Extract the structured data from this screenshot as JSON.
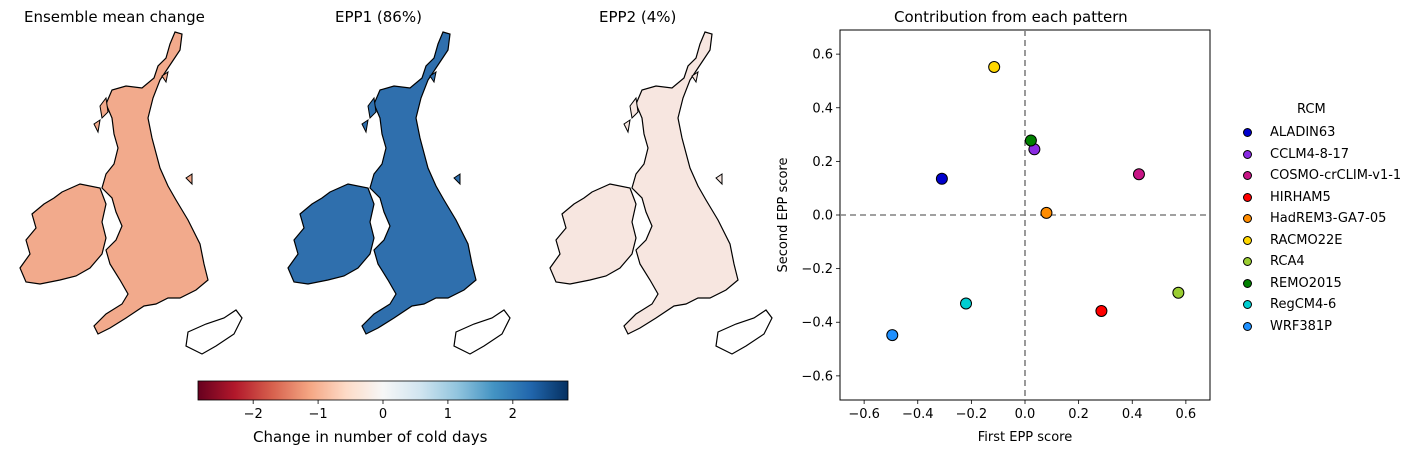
{
  "maps": [
    {
      "title": "Ensemble mean change",
      "fill": "#f2aa8c"
    },
    {
      "title": "EPP1 (86%)",
      "fill": "#2f6fad"
    },
    {
      "title": "EPP2 (4%)",
      "fill": "#f7e6e0"
    }
  ],
  "colorbar": {
    "label": "Change in number of cold days",
    "ticks": [
      {
        "value": -2,
        "label": "−2"
      },
      {
        "value": -1,
        "label": "−1"
      },
      {
        "value": 0,
        "label": "0"
      },
      {
        "value": 1,
        "label": "1"
      },
      {
        "value": 2,
        "label": "2"
      }
    ],
    "range": [
      -2.85,
      2.85
    ],
    "colors": [
      "#67001f",
      "#b2182b",
      "#d6604d",
      "#f4a582",
      "#fddbc7",
      "#f7f7f7",
      "#d1e5f0",
      "#92c5de",
      "#4393c3",
      "#2166ac",
      "#053061"
    ]
  },
  "chart_data": {
    "type": "scatter",
    "title": "Contribution from each pattern",
    "xlabel": "First EPP score",
    "ylabel": "Second EPP score",
    "xlim": [
      -0.69,
      0.69
    ],
    "ylim": [
      -0.69,
      0.69
    ],
    "xticks": [
      {
        "value": -0.6,
        "label": "−0.6"
      },
      {
        "value": -0.4,
        "label": "−0.4"
      },
      {
        "value": -0.2,
        "label": "−0.2"
      },
      {
        "value": 0.0,
        "label": "0.0"
      },
      {
        "value": 0.2,
        "label": "0.2"
      },
      {
        "value": 0.4,
        "label": "0.4"
      },
      {
        "value": 0.6,
        "label": "0.6"
      }
    ],
    "yticks": [
      {
        "value": -0.6,
        "label": "−0.6"
      },
      {
        "value": -0.4,
        "label": "−0.4"
      },
      {
        "value": -0.2,
        "label": "−0.2"
      },
      {
        "value": 0.0,
        "label": "0.0"
      },
      {
        "value": 0.2,
        "label": "0.2"
      },
      {
        "value": 0.4,
        "label": "0.4"
      },
      {
        "value": 0.6,
        "label": "0.6"
      }
    ],
    "reference_lines": {
      "x": 0,
      "y": 0,
      "style": "dashed",
      "color": "#808080"
    },
    "legend_title": "RCM",
    "legend_position": "right",
    "series": [
      {
        "name": "ALADIN63",
        "x": -0.31,
        "y": 0.135,
        "color": "#0000cd"
      },
      {
        "name": "CCLM4-8-17",
        "x": 0.035,
        "y": 0.245,
        "color": "#8a2be2"
      },
      {
        "name": "COSMO-crCLIM-v1-1",
        "x": 0.425,
        "y": 0.152,
        "color": "#c71585"
      },
      {
        "name": "HIRHAM5",
        "x": 0.285,
        "y": -0.358,
        "color": "#ff0000"
      },
      {
        "name": "HadREM3-GA7-05",
        "x": 0.08,
        "y": 0.008,
        "color": "#ff8c00"
      },
      {
        "name": "RACMO22E",
        "x": -0.115,
        "y": 0.552,
        "color": "#ffd700"
      },
      {
        "name": "RCA4",
        "x": 0.572,
        "y": -0.29,
        "color": "#9acd32"
      },
      {
        "name": "REMO2015",
        "x": 0.022,
        "y": 0.278,
        "color": "#008000"
      },
      {
        "name": "RegCM4-6",
        "x": -0.22,
        "y": -0.33,
        "color": "#00ced1"
      },
      {
        "name": "WRF381P",
        "x": -0.495,
        "y": -0.448,
        "color": "#1e90ff"
      }
    ]
  }
}
